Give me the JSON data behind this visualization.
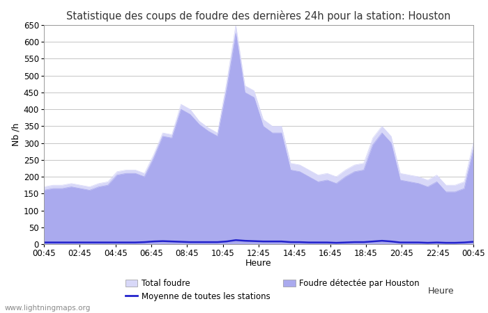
{
  "title": "Statistique des coups de foudre des dernières 24h pour la station: Houston",
  "xlabel": "Heure",
  "ylabel": "Nb /h",
  "ylim": [
    0,
    650
  ],
  "yticks": [
    0,
    50,
    100,
    150,
    200,
    250,
    300,
    350,
    400,
    450,
    500,
    550,
    600,
    650
  ],
  "xtick_labels": [
    "00:45",
    "02:45",
    "04:45",
    "06:45",
    "08:45",
    "10:45",
    "12:45",
    "14:45",
    "16:45",
    "18:45",
    "20:45",
    "22:45",
    "00:45"
  ],
  "watermark": "www.lightningmaps.org",
  "total_foudre_color": "#d8d8f8",
  "houston_color": "#aaaaee",
  "moyenne_color": "#2222cc",
  "total_foudre_label": "Total foudre",
  "houston_label": "Foudre détectée par Houston",
  "moyenne_label": "Moyenne de toutes les stations",
  "x": [
    0,
    1,
    2,
    3,
    4,
    5,
    6,
    7,
    8,
    9,
    10,
    11,
    12,
    13,
    14,
    15,
    16,
    17,
    18,
    19,
    20,
    21,
    22,
    23,
    24,
    25,
    26,
    27,
    28,
    29,
    30,
    31,
    32,
    33,
    34,
    35,
    36,
    37,
    38,
    39,
    40,
    41,
    42,
    43,
    44,
    45,
    46,
    47
  ],
  "total_values": [
    170,
    175,
    175,
    180,
    175,
    170,
    180,
    185,
    215,
    220,
    220,
    210,
    265,
    330,
    325,
    415,
    400,
    365,
    345,
    330,
    480,
    650,
    470,
    455,
    370,
    350,
    350,
    240,
    235,
    220,
    205,
    210,
    200,
    220,
    235,
    240,
    315,
    350,
    320,
    210,
    205,
    200,
    190,
    205,
    175,
    175,
    185,
    300
  ],
  "houston_values": [
    160,
    165,
    165,
    170,
    165,
    160,
    170,
    175,
    205,
    210,
    210,
    200,
    255,
    320,
    315,
    400,
    385,
    355,
    335,
    320,
    460,
    625,
    450,
    435,
    350,
    330,
    330,
    220,
    215,
    200,
    185,
    190,
    180,
    200,
    215,
    220,
    295,
    330,
    300,
    190,
    185,
    180,
    170,
    185,
    155,
    155,
    165,
    280
  ],
  "moyenne_values": [
    5,
    5,
    5,
    5,
    5,
    5,
    5,
    5,
    5,
    5,
    5,
    6,
    8,
    9,
    8,
    7,
    6,
    6,
    6,
    6,
    8,
    12,
    10,
    9,
    8,
    8,
    8,
    6,
    6,
    5,
    5,
    5,
    4,
    5,
    6,
    6,
    8,
    10,
    8,
    5,
    5,
    5,
    4,
    5,
    4,
    4,
    5,
    7
  ],
  "background_color": "#ffffff",
  "plot_bg_color": "#ffffff",
  "grid_color": "#bbbbbb"
}
